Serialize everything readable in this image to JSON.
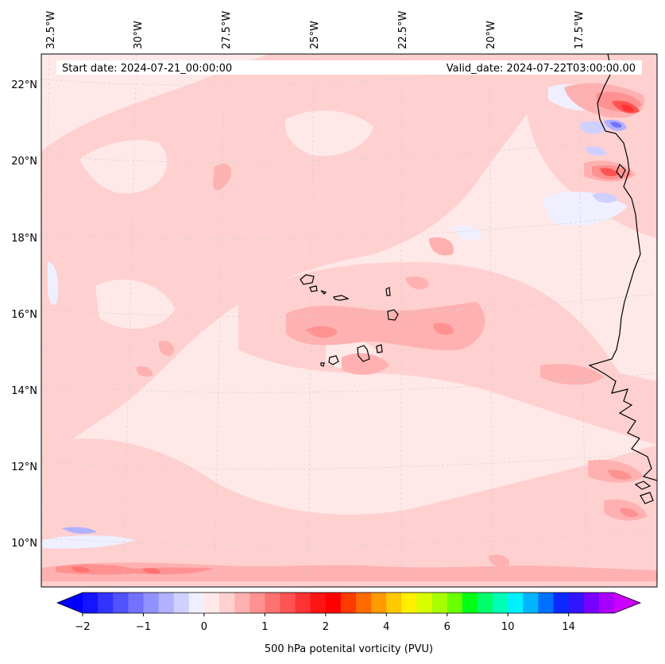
{
  "map": {
    "start_date": "Start date: 2024-07-21_00:00:00",
    "valid_date": "Valid_date: 2024-07-22T03:00:00.00",
    "lon_labels": [
      "32.5°W",
      "30°W",
      "27.5°W",
      "25°W",
      "22.5°W",
      "20°W",
      "17.5°W"
    ],
    "lat_labels": [
      "22°N",
      "20°N",
      "18°N",
      "16°N",
      "14°N",
      "12°N",
      "10°N"
    ]
  },
  "colorbar": {
    "title": "500 hPa potenital vorticity (PVU)",
    "tick_labels": [
      "−2",
      "−1",
      "0",
      "1",
      "2",
      "4",
      "6",
      "10",
      "14"
    ],
    "colors": [
      "#1414ff",
      "#3333ff",
      "#5252ff",
      "#7272ff",
      "#9191ff",
      "#b1b1ff",
      "#d0d0ff",
      "#efefff",
      "#ffe8e8",
      "#ffd0d0",
      "#ffb1b1",
      "#ff9191",
      "#ff7272",
      "#ff5252",
      "#ff3333",
      "#ff1414",
      "#ff0000",
      "#ff3a00",
      "#ff6a00",
      "#ff9a00",
      "#ffc800",
      "#fff000",
      "#d8ff00",
      "#a8ff00",
      "#6cff00",
      "#00ff14",
      "#00ff6a",
      "#00ffb4",
      "#00f0ff",
      "#00b4ff",
      "#0070ff",
      "#0a28ff",
      "#3214ff",
      "#7800ff",
      "#a800ff"
    ],
    "under_color": "#0000ff",
    "over_color": "#cc00ff"
  },
  "colors": {
    "background_pv": "#ffe8e8",
    "light_pink": "#ffd0d0",
    "mid_pink": "#ffb1b1",
    "strong_pink": "#ff9191",
    "red": "#ff5252",
    "deep_red": "#ff3333",
    "pale_blue": "#efefff",
    "light_blue": "#d0d0ff",
    "mid_blue": "#9191ff"
  }
}
